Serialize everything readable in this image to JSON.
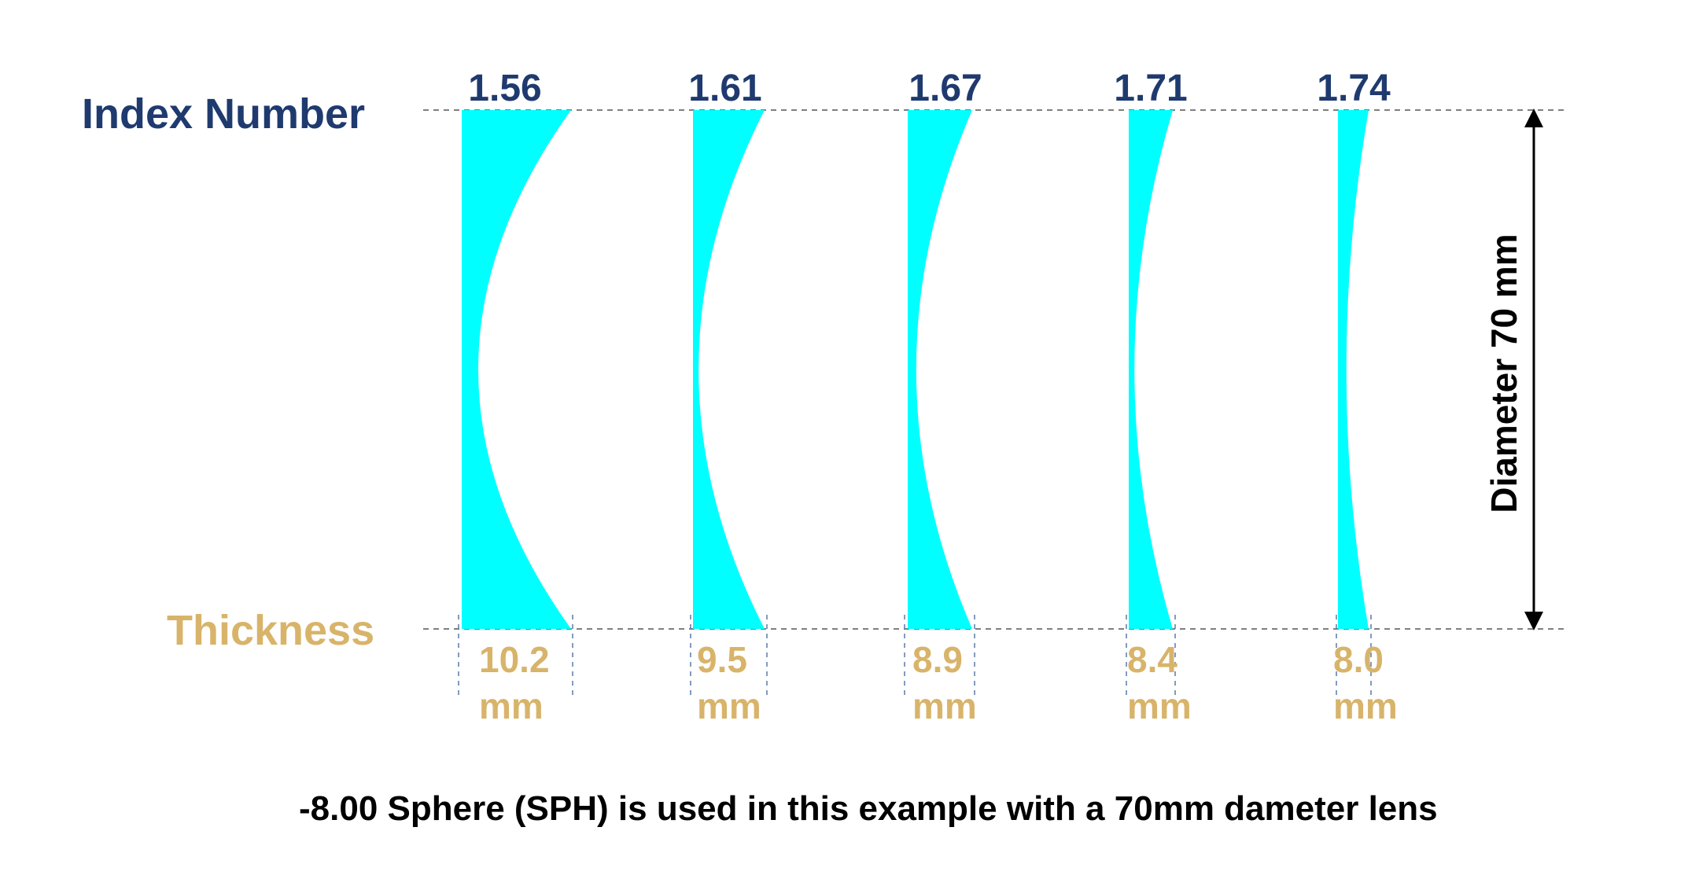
{
  "labels": {
    "index_number": "Index Number",
    "thickness": "Thickness",
    "diameter": "Diameter 70 mm",
    "caption": "-8.00 Sphere (SPH) is used in this example with a 70mm dameter lens"
  },
  "colors": {
    "lens": "#00ffff",
    "index_text": "#1f3a6e",
    "thickness_text": "#d8b46a"
  },
  "lenses": [
    {
      "index": "1.56",
      "thickness": "10.2",
      "unit": "mm"
    },
    {
      "index": "1.61",
      "thickness": "9.5",
      "unit": "mm"
    },
    {
      "index": "1.67",
      "thickness": "8.9",
      "unit": "mm"
    },
    {
      "index": "1.71",
      "thickness": "8.4",
      "unit": "mm"
    },
    {
      "index": "1.74",
      "thickness": "8.0",
      "unit": "mm"
    }
  ]
}
